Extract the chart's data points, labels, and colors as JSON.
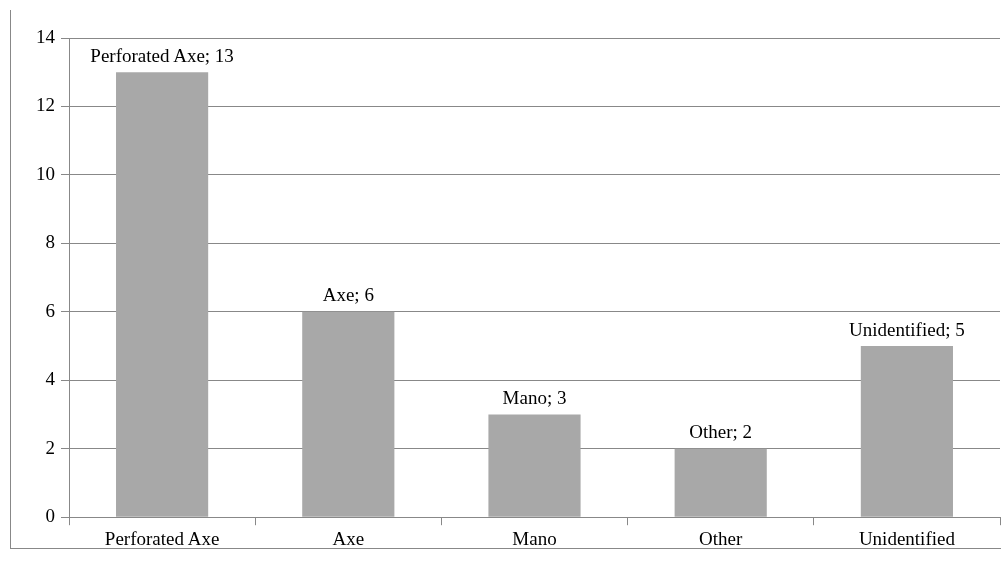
{
  "chart_data": {
    "type": "bar",
    "categories": [
      "Perforated Axe",
      "Axe",
      "Mano",
      "Other",
      "Unidentified"
    ],
    "values": [
      13,
      6,
      3,
      2,
      5
    ],
    "value_labels": [
      "Perforated Axe; 13",
      "Axe; 6",
      "Mano; 3",
      "Other; 2",
      "Unidentified; 5"
    ],
    "color": "#a8a8a8",
    "ylim": [
      0,
      14
    ],
    "yticks": [
      0,
      2,
      4,
      6,
      8,
      10,
      12,
      14
    ],
    "grid": "y",
    "legend": false
  }
}
